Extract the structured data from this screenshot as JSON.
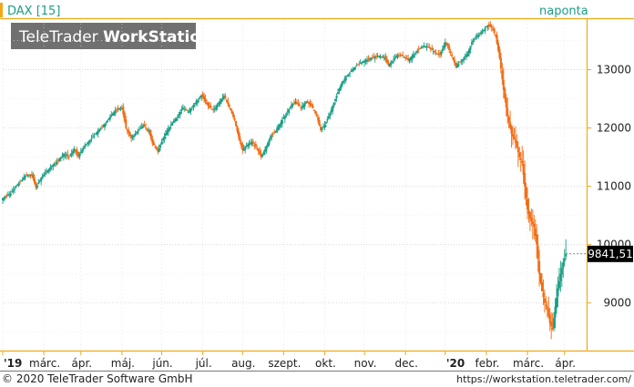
{
  "header": {
    "symbol": "DAX [15]",
    "interval": "naponta"
  },
  "watermark": {
    "brand_light": "TeleTrader ",
    "brand_bold": "WorkStation"
  },
  "footer": {
    "copyright": "© 2020 TeleTrader Software GmbH",
    "url": "https://workstation.teletrader.com/"
  },
  "colors": {
    "up": "#1a9e84",
    "down": "#f26a10",
    "accent": "#f0a818",
    "link": "#1a9e84",
    "text": "#222222"
  },
  "chart_data": {
    "type": "candlestick",
    "title": "DAX [15]",
    "period": "naponta",
    "ylim": [
      8200,
      13850
    ],
    "y_ticks": [
      9000,
      10000,
      11000,
      12000,
      13000
    ],
    "x_ticks": [
      {
        "label": "'19",
        "bold": true,
        "day": 0
      },
      {
        "label": "márc.",
        "bold": false,
        "day": 31
      },
      {
        "label": "ápr.",
        "bold": false,
        "day": 59
      },
      {
        "label": "máj.",
        "bold": false,
        "day": 90
      },
      {
        "label": "jún.",
        "bold": false,
        "day": 120
      },
      {
        "label": "júl.",
        "bold": false,
        "day": 151
      },
      {
        "label": "aug.",
        "bold": false,
        "day": 181
      },
      {
        "label": "szept.",
        "bold": false,
        "day": 212
      },
      {
        "label": "okt.",
        "bold": false,
        "day": 243
      },
      {
        "label": "nov.",
        "bold": false,
        "day": 273
      },
      {
        "label": "dec.",
        "bold": false,
        "day": 304
      },
      {
        "label": "'20",
        "bold": true,
        "day": 334
      },
      {
        "label": "febr.",
        "bold": false,
        "day": 365
      },
      {
        "label": "márc.",
        "bold": false,
        "day": 396
      },
      {
        "label": "ápr.",
        "bold": false,
        "day": 424
      }
    ],
    "last_value_label": "9841,51",
    "last_value": 9841.51,
    "x_domain_days": [
      0,
      440
    ],
    "series": [
      {
        "name": "DAX",
        "closes": [
          [
            0,
            10800
          ],
          [
            6,
            10880
          ],
          [
            12,
            11050
          ],
          [
            17,
            11180
          ],
          [
            22,
            11200
          ],
          [
            25,
            10980
          ],
          [
            29,
            11150
          ],
          [
            36,
            11330
          ],
          [
            41,
            11420
          ],
          [
            46,
            11560
          ],
          [
            50,
            11500
          ],
          [
            54,
            11640
          ],
          [
            57,
            11520
          ],
          [
            62,
            11700
          ],
          [
            67,
            11820
          ],
          [
            72,
            11960
          ],
          [
            76,
            12040
          ],
          [
            81,
            12190
          ],
          [
            85,
            12300
          ],
          [
            90,
            12350
          ],
          [
            93,
            12000
          ],
          [
            97,
            11820
          ],
          [
            101,
            11920
          ],
          [
            106,
            12050
          ],
          [
            110,
            11960
          ],
          [
            113,
            11740
          ],
          [
            117,
            11600
          ],
          [
            120,
            11760
          ],
          [
            124,
            11950
          ],
          [
            128,
            12090
          ],
          [
            132,
            12200
          ],
          [
            136,
            12350
          ],
          [
            140,
            12280
          ],
          [
            144,
            12400
          ],
          [
            150,
            12560
          ],
          [
            155,
            12380
          ],
          [
            159,
            12300
          ],
          [
            164,
            12460
          ],
          [
            167,
            12550
          ],
          [
            171,
            12360
          ],
          [
            175,
            12130
          ],
          [
            178,
            11850
          ],
          [
            181,
            11620
          ],
          [
            184,
            11700
          ],
          [
            188,
            11760
          ],
          [
            192,
            11650
          ],
          [
            195,
            11500
          ],
          [
            198,
            11630
          ],
          [
            202,
            11850
          ],
          [
            206,
            11950
          ],
          [
            210,
            12100
          ],
          [
            214,
            12250
          ],
          [
            218,
            12400
          ],
          [
            221,
            12450
          ],
          [
            225,
            12350
          ],
          [
            229,
            12450
          ],
          [
            233,
            12380
          ],
          [
            237,
            12200
          ],
          [
            240,
            11960
          ],
          [
            243,
            12050
          ],
          [
            247,
            12250
          ],
          [
            251,
            12500
          ],
          [
            256,
            12780
          ],
          [
            260,
            12900
          ],
          [
            264,
            13000
          ],
          [
            268,
            13090
          ],
          [
            272,
            13140
          ],
          [
            276,
            13180
          ],
          [
            280,
            13220
          ],
          [
            284,
            13240
          ],
          [
            288,
            13210
          ],
          [
            291,
            13080
          ],
          [
            294,
            13150
          ],
          [
            298,
            13250
          ],
          [
            302,
            13230
          ],
          [
            306,
            13160
          ],
          [
            310,
            13260
          ],
          [
            314,
            13350
          ],
          [
            318,
            13410
          ],
          [
            322,
            13370
          ],
          [
            326,
            13300
          ],
          [
            330,
            13250
          ],
          [
            334,
            13470
          ],
          [
            338,
            13290
          ],
          [
            342,
            13050
          ],
          [
            345,
            13130
          ],
          [
            348,
            13200
          ],
          [
            351,
            13280
          ],
          [
            354,
            13470
          ],
          [
            357,
            13560
          ],
          [
            360,
            13620
          ],
          [
            363,
            13680
          ],
          [
            366,
            13760
          ],
          [
            369,
            13720
          ],
          [
            372,
            13580
          ],
          [
            375,
            13200
          ],
          [
            378,
            12650
          ],
          [
            381,
            12200
          ],
          [
            384,
            11900
          ],
          [
            387,
            11750
          ],
          [
            390,
            11500
          ],
          [
            392,
            11400
          ],
          [
            393,
            11200
          ],
          [
            396,
            10600
          ],
          [
            398,
            10450
          ],
          [
            401,
            10300
          ],
          [
            403,
            10000
          ],
          [
            405,
            9500
          ],
          [
            407,
            9200
          ],
          [
            409,
            9000
          ],
          [
            411,
            8900
          ],
          [
            413,
            8650
          ],
          [
            415,
            8550
          ],
          [
            417,
            8940
          ],
          [
            419,
            9250
          ],
          [
            421,
            9500
          ],
          [
            423,
            9700
          ],
          [
            425,
            9841.51
          ]
        ]
      }
    ]
  }
}
